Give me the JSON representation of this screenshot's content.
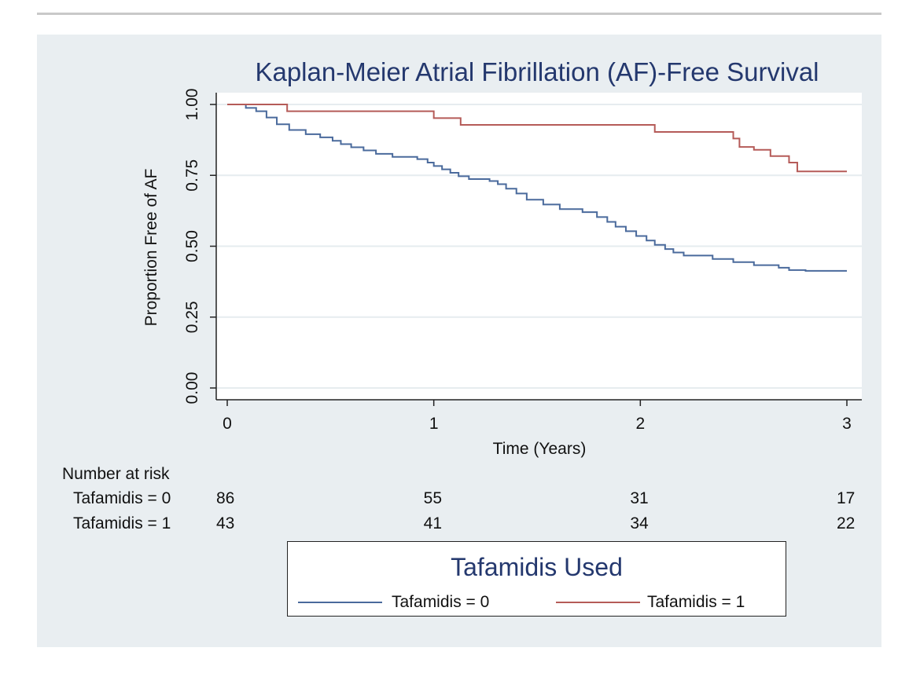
{
  "chart_data": {
    "type": "line",
    "subtype": "kaplan-meier step",
    "title": "Kaplan-Meier Atrial Fibrillation (AF)-Free Survival",
    "xlabel": "Time (Years)",
    "ylabel": "Proportion Free of AF",
    "xlim": [
      0,
      3
    ],
    "ylim": [
      0,
      1
    ],
    "x_ticks": [
      "0",
      "1",
      "2",
      "3"
    ],
    "y_ticks": [
      "0.00",
      "0.25",
      "0.50",
      "0.75",
      "1.00"
    ],
    "grid": true,
    "series": [
      {
        "name": "Tafamidis = 0",
        "color": "#4a6a9c",
        "steps": [
          [
            0,
            1.0
          ],
          [
            0.09,
            0.988
          ],
          [
            0.14,
            0.976
          ],
          [
            0.19,
            0.954
          ],
          [
            0.24,
            0.93
          ],
          [
            0.3,
            0.91
          ],
          [
            0.38,
            0.895
          ],
          [
            0.45,
            0.884
          ],
          [
            0.51,
            0.872
          ],
          [
            0.55,
            0.86
          ],
          [
            0.6,
            0.849
          ],
          [
            0.66,
            0.838
          ],
          [
            0.72,
            0.826
          ],
          [
            0.8,
            0.815
          ],
          [
            0.92,
            0.807
          ],
          [
            0.97,
            0.795
          ],
          [
            1.0,
            0.783
          ],
          [
            1.04,
            0.771
          ],
          [
            1.08,
            0.759
          ],
          [
            1.12,
            0.747
          ],
          [
            1.17,
            0.737
          ],
          [
            1.27,
            0.73
          ],
          [
            1.31,
            0.719
          ],
          [
            1.35,
            0.703
          ],
          [
            1.4,
            0.686
          ],
          [
            1.45,
            0.664
          ],
          [
            1.53,
            0.647
          ],
          [
            1.61,
            0.631
          ],
          [
            1.72,
            0.62
          ],
          [
            1.79,
            0.603
          ],
          [
            1.84,
            0.586
          ],
          [
            1.88,
            0.569
          ],
          [
            1.93,
            0.553
          ],
          [
            1.98,
            0.536
          ],
          [
            2.03,
            0.52
          ],
          [
            2.07,
            0.505
          ],
          [
            2.12,
            0.49
          ],
          [
            2.16,
            0.478
          ],
          [
            2.21,
            0.467
          ],
          [
            2.35,
            0.455
          ],
          [
            2.45,
            0.444
          ],
          [
            2.55,
            0.433
          ],
          [
            2.67,
            0.424
          ],
          [
            2.72,
            0.416
          ],
          [
            2.8,
            0.413
          ],
          [
            3.0,
            0.413
          ]
        ]
      },
      {
        "name": "Tafamidis = 1",
        "color": "#b55b58",
        "steps": [
          [
            0,
            1.0
          ],
          [
            0.29,
            0.976
          ],
          [
            1.0,
            0.952
          ],
          [
            1.13,
            0.928
          ],
          [
            2.07,
            0.903
          ],
          [
            2.45,
            0.88
          ],
          [
            2.48,
            0.85
          ],
          [
            2.55,
            0.84
          ],
          [
            2.63,
            0.818
          ],
          [
            2.72,
            0.795
          ],
          [
            2.76,
            0.764
          ],
          [
            3.0,
            0.764
          ]
        ]
      }
    ],
    "risk_table": {
      "header": "Number at risk",
      "rows": [
        {
          "label": "Tafamidis = 0",
          "values": [
            "86",
            "55",
            "31",
            "17"
          ]
        },
        {
          "label": "Tafamidis = 1",
          "values": [
            "43",
            "41",
            "34",
            "22"
          ]
        }
      ]
    },
    "legend": {
      "title": "Tafamidis Used",
      "placement": "bottom-center",
      "entries": [
        "Tafamidis = 0",
        "Tafamidis = 1"
      ]
    }
  }
}
